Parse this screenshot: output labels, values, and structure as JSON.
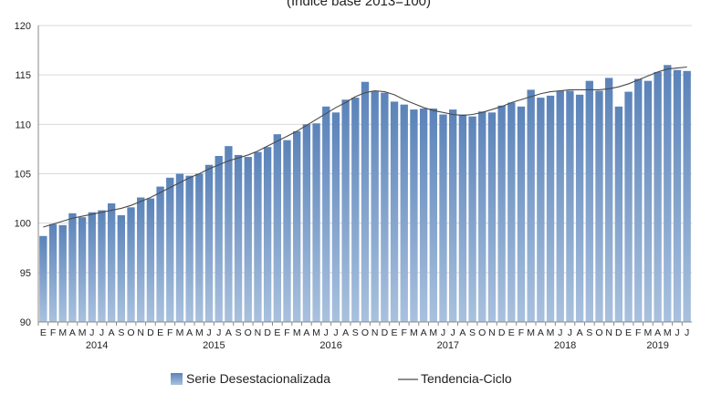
{
  "chart_data": {
    "type": "bar",
    "subtitle": "(Índice base 2013=100)",
    "ylim": [
      90,
      120
    ],
    "yticks": [
      90,
      95,
      100,
      105,
      110,
      115,
      120
    ],
    "grid": true,
    "legend_position": "bottom",
    "colors": {
      "bar_top": "#5b83b9",
      "bar_bottom": "#a9c1de",
      "trend": "#4a4a4a",
      "grid": "#d9d9d9",
      "axis": "#888888"
    },
    "categories": [
      "E",
      "F",
      "M",
      "A",
      "M",
      "J",
      "J",
      "A",
      "S",
      "O",
      "N",
      "D",
      "E",
      "F",
      "M",
      "A",
      "M",
      "J",
      "J",
      "A",
      "S",
      "O",
      "N",
      "D",
      "E",
      "F",
      "M",
      "A",
      "M",
      "J",
      "J",
      "A",
      "S",
      "O",
      "N",
      "D",
      "E",
      "F",
      "M",
      "A",
      "M",
      "J",
      "J",
      "A",
      "S",
      "O",
      "N",
      "D",
      "E",
      "F",
      "M",
      "A",
      "M",
      "J",
      "J",
      "A",
      "S",
      "O",
      "N",
      "D",
      "E",
      "F",
      "M",
      "A",
      "M",
      "J",
      "J"
    ],
    "years": [
      {
        "label": "2014",
        "start": 0,
        "count": 12
      },
      {
        "label": "2015",
        "start": 12,
        "count": 12
      },
      {
        "label": "2016",
        "start": 24,
        "count": 12
      },
      {
        "label": "2017",
        "start": 36,
        "count": 12
      },
      {
        "label": "2018",
        "start": 48,
        "count": 12
      },
      {
        "label": "2019",
        "start": 60,
        "count": 7
      }
    ],
    "series": [
      {
        "name": "Serie Desestacionalizada",
        "type": "bar",
        "values": [
          98.7,
          99.9,
          99.8,
          101.0,
          100.6,
          101.1,
          101.3,
          102.0,
          100.8,
          101.6,
          102.6,
          102.5,
          103.7,
          104.6,
          105.0,
          104.8,
          105.0,
          105.9,
          106.8,
          107.8,
          106.9,
          106.7,
          107.2,
          107.7,
          109.0,
          108.4,
          109.3,
          110.0,
          110.1,
          111.8,
          111.2,
          112.5,
          112.7,
          114.3,
          113.4,
          113.2,
          112.3,
          112.0,
          111.5,
          111.6,
          111.6,
          111.0,
          111.5,
          111.0,
          110.8,
          111.3,
          111.2,
          111.9,
          112.2,
          111.8,
          113.5,
          112.7,
          112.9,
          113.4,
          113.4,
          113.0,
          114.4,
          113.4,
          114.7,
          111.8,
          113.3,
          114.6,
          114.4,
          115.3,
          116.0,
          115.5,
          115.4
        ]
      },
      {
        "name": "Tendencia-Ciclo",
        "type": "line",
        "values": [
          99.6,
          99.9,
          100.2,
          100.5,
          100.7,
          100.9,
          101.1,
          101.3,
          101.5,
          101.8,
          102.2,
          102.6,
          103.1,
          103.6,
          104.1,
          104.6,
          105.0,
          105.5,
          105.9,
          106.3,
          106.6,
          106.9,
          107.3,
          107.8,
          108.3,
          108.8,
          109.3,
          109.9,
          110.5,
          111.1,
          111.7,
          112.2,
          112.8,
          113.2,
          113.4,
          113.3,
          113.0,
          112.5,
          112.1,
          111.7,
          111.4,
          111.2,
          111.0,
          110.9,
          111.0,
          111.2,
          111.5,
          111.8,
          112.2,
          112.5,
          112.8,
          113.1,
          113.3,
          113.4,
          113.5,
          113.5,
          113.5,
          113.5,
          113.6,
          113.8,
          114.1,
          114.5,
          114.9,
          115.3,
          115.6,
          115.7,
          115.8
        ]
      }
    ]
  }
}
